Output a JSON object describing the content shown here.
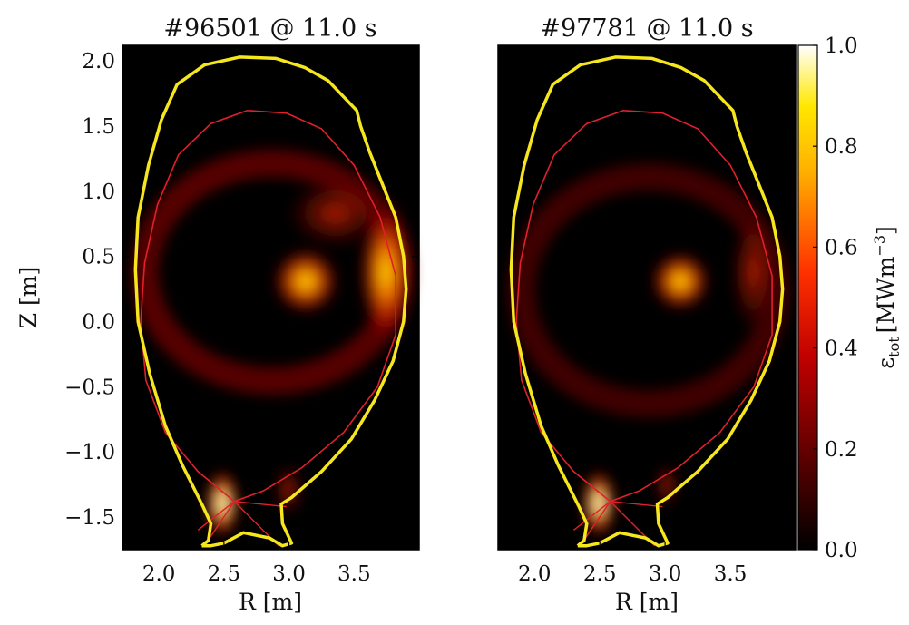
{
  "chart_data": [
    {
      "type": "heatmap",
      "title": "#96501 @ 11.0 s",
      "xlabel": "R [m]",
      "ylabel": "Z [m]",
      "xlim": [
        1.72,
        4.0
      ],
      "ylim": [
        -1.75,
        2.12
      ],
      "xticks": [
        "2.0",
        "2.5",
        "3.0",
        "3.5"
      ],
      "yticks": [
        "2.0",
        "1.5",
        "1.0",
        "0.5",
        "0.0",
        "−0.5",
        "−1.0",
        "−1.5"
      ],
      "colormap": "hot",
      "overlays": [
        "first-wall (yellow)",
        "separatrix (red)"
      ],
      "emission_blobs": [
        {
          "R": 3.1,
          "Z": 0.3,
          "level": 0.75
        },
        {
          "R": 3.75,
          "Z": 0.3,
          "level": 0.95
        },
        {
          "R": 3.4,
          "Z": 0.8,
          "level": 0.4
        },
        {
          "R": 2.45,
          "Z": -1.45,
          "level": 1.0
        },
        {
          "R": 2.9,
          "Z": -1.25,
          "level": 0.35
        }
      ]
    },
    {
      "type": "heatmap",
      "title": "#97781 @ 11.0 s",
      "xlabel": "R [m]",
      "ylabel": "",
      "xlim": [
        1.72,
        4.0
      ],
      "ylim": [
        -1.75,
        2.12
      ],
      "xticks": [
        "2.0",
        "2.5",
        "3.0",
        "3.5"
      ],
      "colormap": "hot",
      "overlays": [
        "first-wall (yellow)",
        "separatrix (red)"
      ],
      "emission_blobs": [
        {
          "R": 3.1,
          "Z": 0.3,
          "level": 0.8
        },
        {
          "R": 3.7,
          "Z": 0.2,
          "level": 0.4
        },
        {
          "R": 2.45,
          "Z": -1.45,
          "level": 1.0
        },
        {
          "R": 3.0,
          "Z": -1.2,
          "level": 0.4
        }
      ]
    }
  ],
  "colorbar": {
    "label_main": "ε",
    "label_sub": "tot",
    "label_unit": "[MWm",
    "label_sup": "−3",
    "label_close": "]",
    "range": [
      0.0,
      1.0
    ],
    "ticks": [
      "1.0",
      "0.8",
      "0.6",
      "0.4",
      "0.2",
      "0.0"
    ]
  },
  "colors": {
    "wall": "#f5e61e",
    "separatrix": "#e0202a",
    "background": "#000000"
  }
}
